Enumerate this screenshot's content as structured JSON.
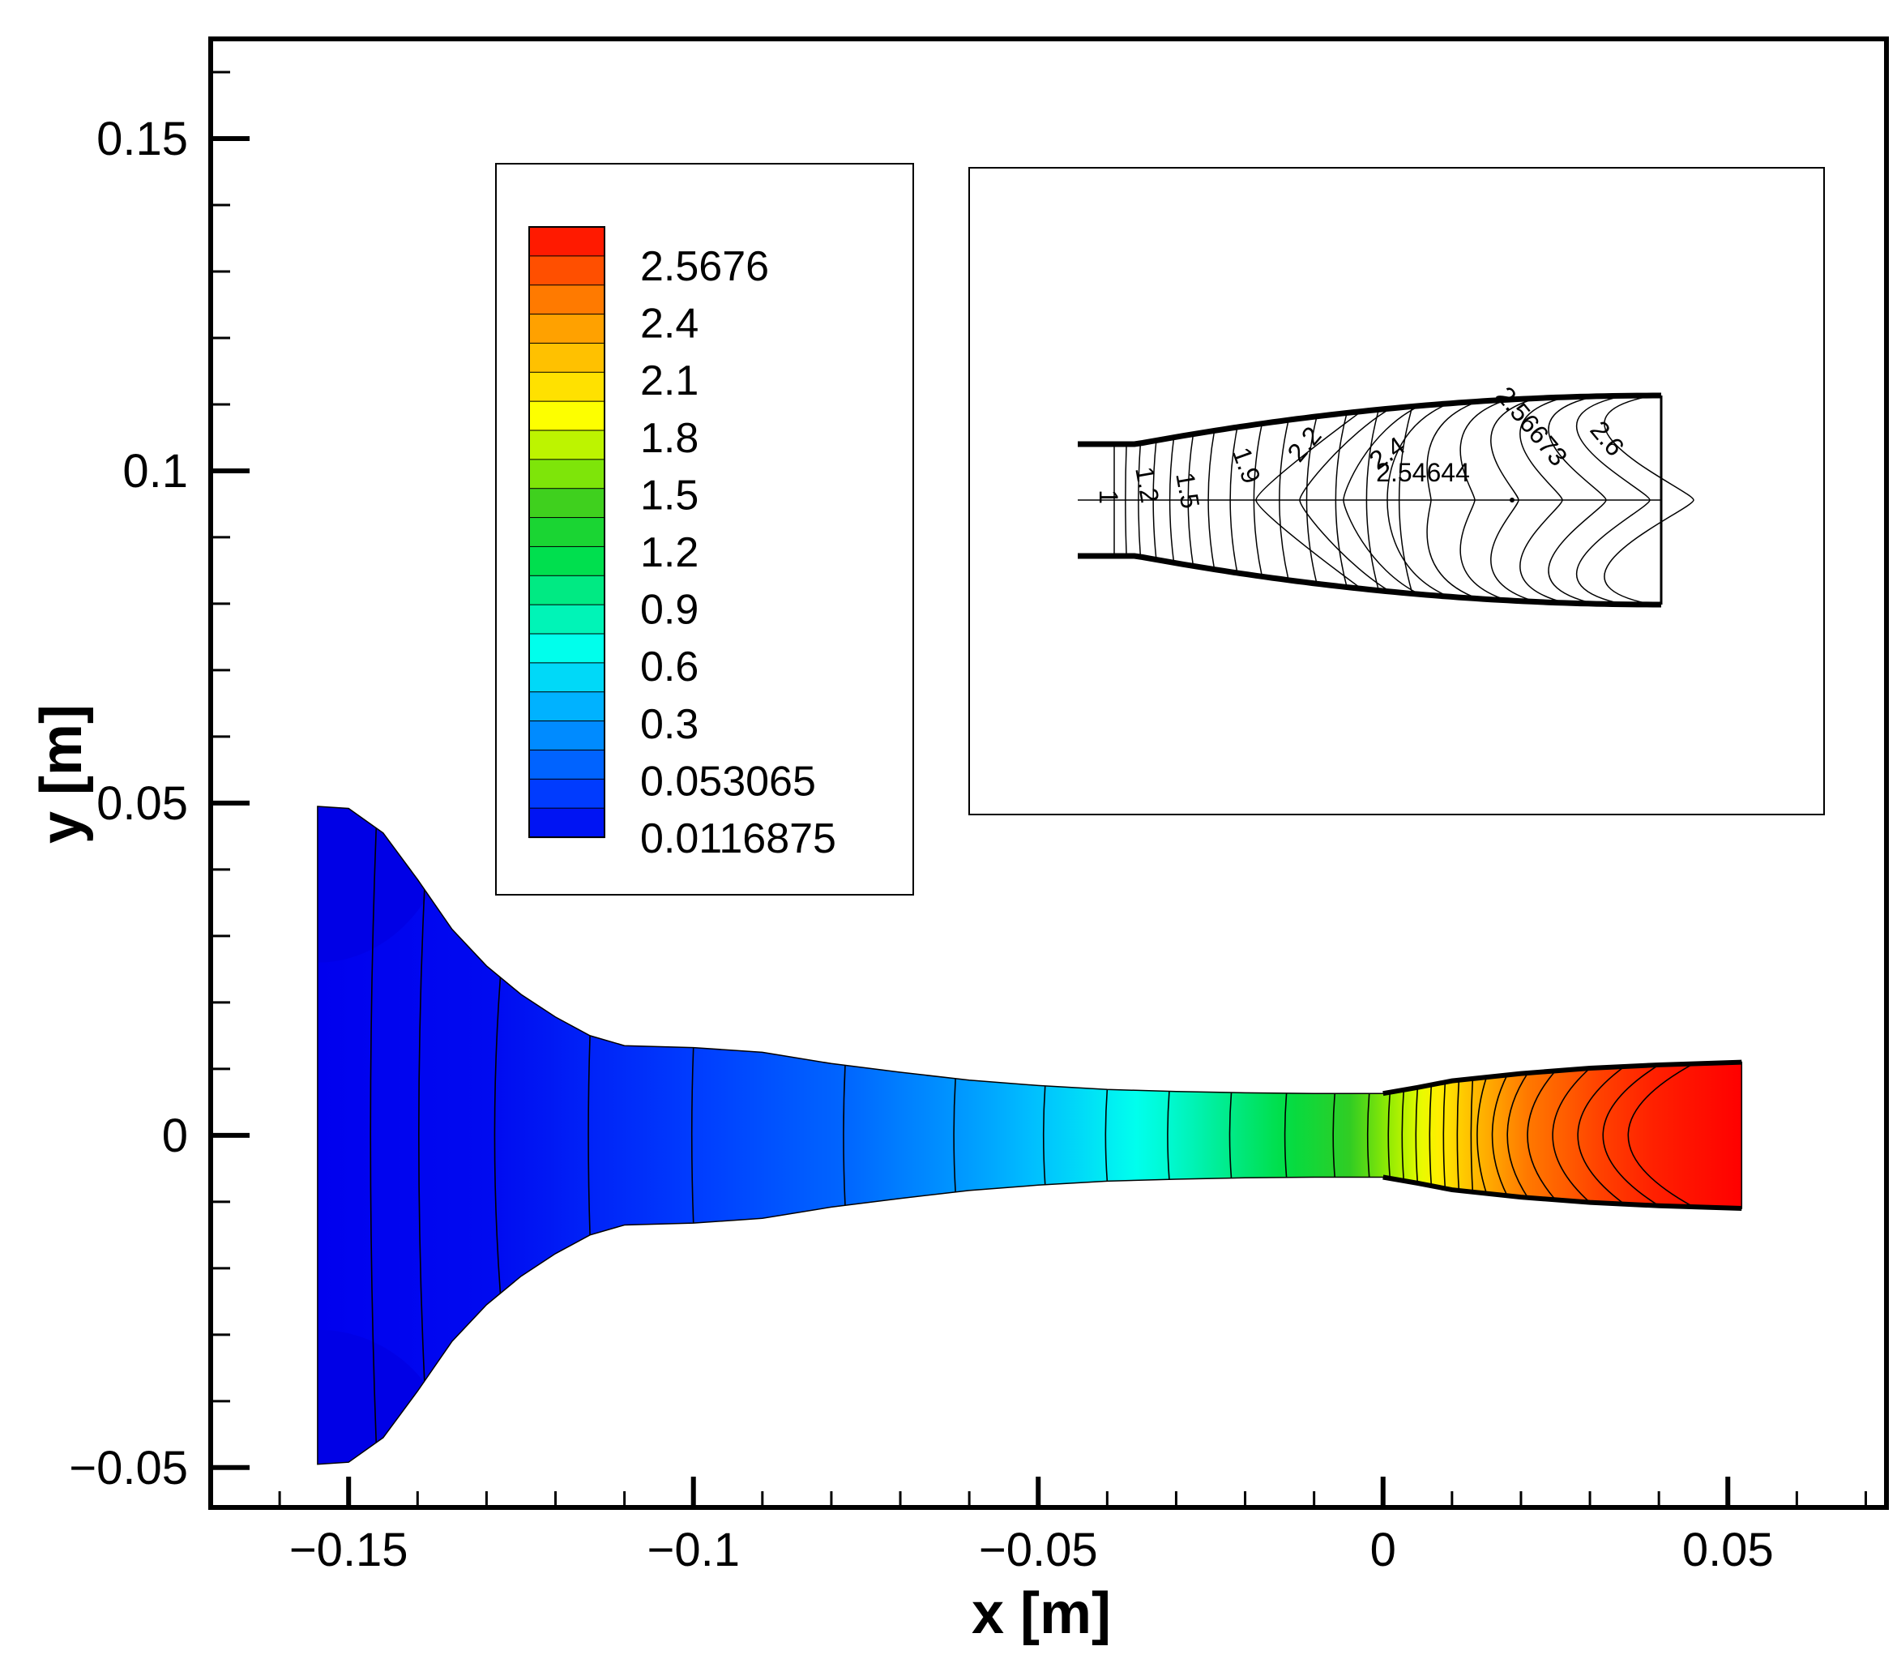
{
  "chart_data": {
    "type": "contour",
    "title": "",
    "xlabel": "x [m]",
    "ylabel": "y [m]",
    "xlim": [
      -0.17,
      0.073
    ],
    "ylim": [
      -0.056,
      0.165
    ],
    "x_ticks": [
      -0.15,
      -0.1,
      -0.05,
      0,
      0.05
    ],
    "x_tick_labels": [
      "−0.15",
      "−0.1",
      "−0.05",
      "0",
      "0.05"
    ],
    "y_ticks": [
      -0.05,
      0,
      0.05,
      0.1,
      0.15
    ],
    "y_tick_labels": [
      "−0.05",
      "0",
      "0.05",
      "0.1",
      "0.15"
    ],
    "nozzle_outline": [
      [
        -0.1545,
        0.0495
      ],
      [
        -0.15,
        0.0492
      ],
      [
        -0.145,
        0.0455
      ],
      [
        -0.14,
        0.0385
      ],
      [
        -0.135,
        0.031
      ],
      [
        -0.13,
        0.0255
      ],
      [
        -0.125,
        0.0212
      ],
      [
        -0.12,
        0.0178
      ],
      [
        -0.115,
        0.015
      ],
      [
        -0.11,
        0.0135
      ],
      [
        -0.1,
        0.0132
      ],
      [
        -0.09,
        0.0125
      ],
      [
        -0.08,
        0.0108
      ],
      [
        -0.07,
        0.0095
      ],
      [
        -0.06,
        0.0083
      ],
      [
        -0.05,
        0.0075
      ],
      [
        -0.04,
        0.0069
      ],
      [
        -0.03,
        0.0066
      ],
      [
        -0.02,
        0.0064
      ],
      [
        -0.01,
        0.0063
      ],
      [
        0,
        0.0063
      ],
      [
        0.005,
        0.0072
      ],
      [
        0.01,
        0.0082
      ],
      [
        0.02,
        0.0093
      ],
      [
        0.03,
        0.0101
      ],
      [
        0.04,
        0.0106
      ],
      [
        0.052,
        0.011
      ]
    ],
    "contour_x": [
      -0.146,
      -0.139,
      -0.128,
      -0.115,
      -0.1,
      -0.078,
      -0.062,
      -0.049,
      -0.04,
      -0.031,
      -0.022,
      -0.014,
      -0.007,
      -0.002,
      0.001,
      0.003,
      0.005,
      0.007,
      0.009,
      0.011,
      0.013,
      0.015,
      0.018,
      0.021,
      0.025,
      0.03,
      0.035,
      0.04,
      0.045
    ],
    "field_stops": [
      {
        "x": -0.1545,
        "v": 0.012
      },
      {
        "x": -0.13,
        "v": 0.04
      },
      {
        "x": -0.115,
        "v": 0.12
      },
      {
        "x": -0.1,
        "v": 0.2
      },
      {
        "x": -0.078,
        "v": 0.33
      },
      {
        "x": -0.06,
        "v": 0.5
      },
      {
        "x": -0.045,
        "v": 0.68
      },
      {
        "x": -0.03,
        "v": 0.9
      },
      {
        "x": -0.015,
        "v": 1.2
      },
      {
        "x": -0.005,
        "v": 1.4
      },
      {
        "x": 0.005,
        "v": 1.75
      },
      {
        "x": 0.012,
        "v": 2.05
      },
      {
        "x": 0.02,
        "v": 2.3
      },
      {
        "x": 0.03,
        "v": 2.45
      },
      {
        "x": 0.04,
        "v": 2.55
      },
      {
        "x": 0.052,
        "v": 2.62
      }
    ],
    "colormap": [
      "#0000ee",
      "#0040ff",
      "#0080ff",
      "#00c0ff",
      "#00ffee",
      "#00ee99",
      "#00dd44",
      "#33cc22",
      "#99ee00",
      "#ffff00",
      "#ffcc00",
      "#ff9900",
      "#ff5500",
      "#ff0000"
    ],
    "color_range": [
      0.0116875,
      2.62
    ],
    "legend": {
      "levels": [
        "2.5676",
        "2.4",
        "2.1",
        "1.8",
        "1.5",
        "1.2",
        "0.9",
        "0.6",
        "0.3",
        "0.053065",
        "0.0116875"
      ],
      "placement": "top-left inset"
    },
    "inset": {
      "description_type": "contour-line detail",
      "contour_labels": [
        "1",
        "1.2",
        "1.5",
        "1.9",
        "2.2",
        "2.4",
        "2.54644",
        "2.56673",
        "2.6"
      ]
    }
  }
}
